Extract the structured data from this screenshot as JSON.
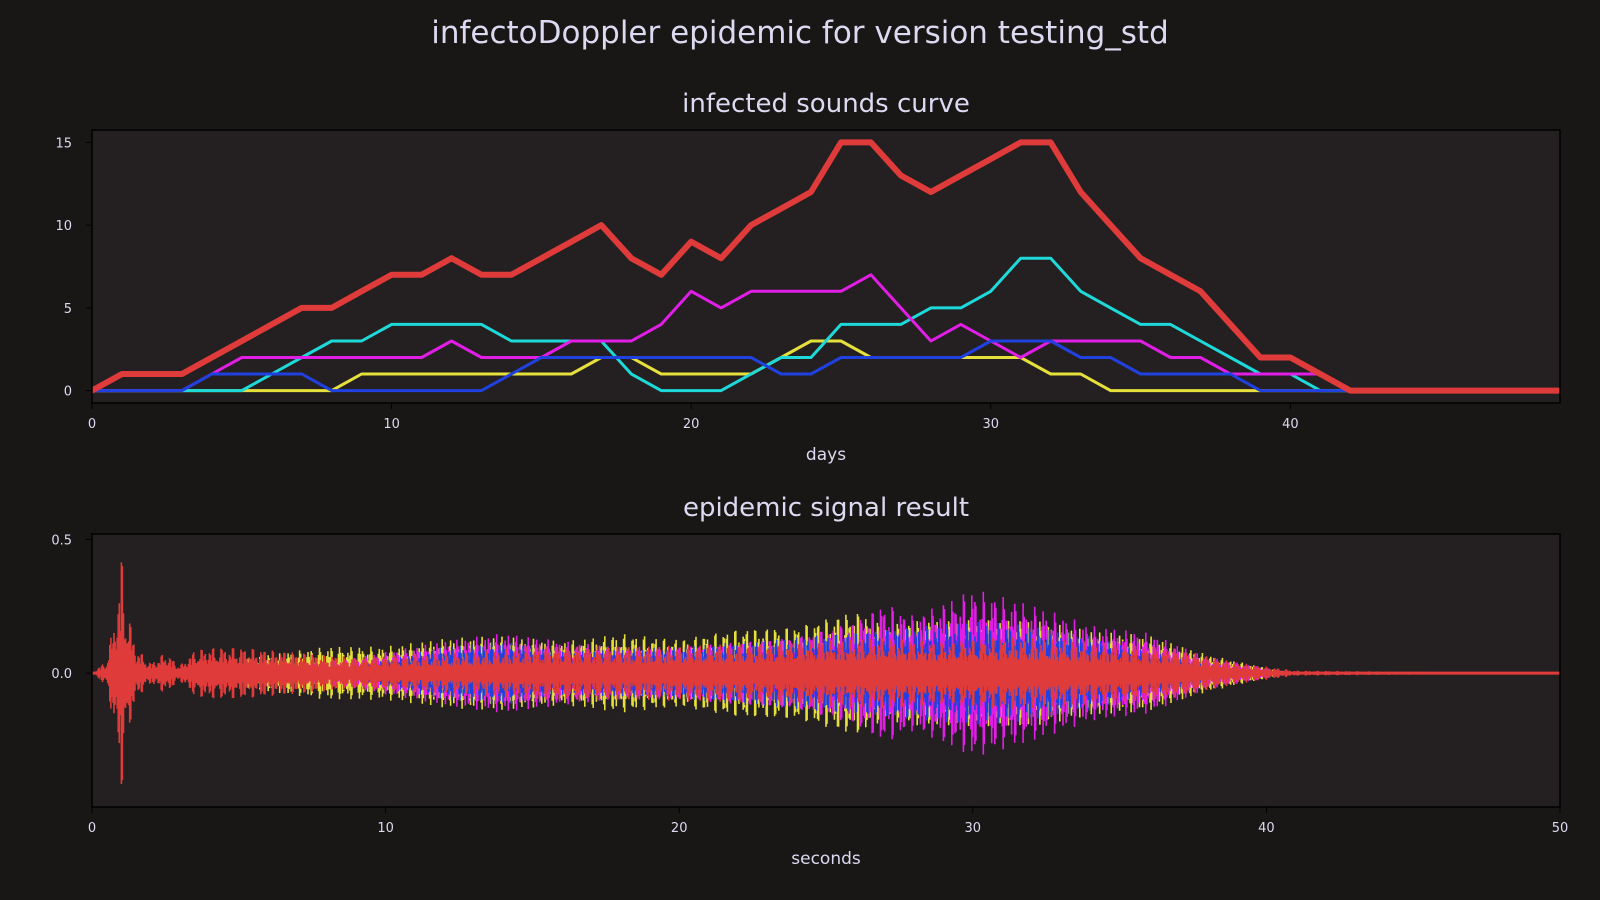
{
  "figure": {
    "suptitle": "infectoDoppler epidemic for version testing_std",
    "background": "#191616",
    "axes_background": "#241f20",
    "text_color": "#dcdaf0"
  },
  "chart_data": [
    {
      "type": "line",
      "title": "infected sounds curve",
      "xlabel": "days",
      "ylabel": "",
      "xlim": [
        0,
        49
      ],
      "ylim": [
        -0.75,
        15.75
      ],
      "xticks": [
        0,
        10,
        20,
        30,
        40
      ],
      "yticks": [
        0,
        5,
        10,
        15
      ],
      "grid": false,
      "legend": false,
      "series": [
        {
          "color": "#e6e03c",
          "width": 3,
          "values": [
            0,
            0,
            0,
            0,
            0,
            0,
            0,
            0,
            0,
            1,
            1,
            1,
            1,
            1,
            1,
            1,
            1,
            2,
            2,
            1,
            1,
            1,
            1,
            2,
            3,
            3,
            2,
            2,
            2,
            2,
            2,
            2,
            1,
            1,
            0,
            0,
            0,
            0,
            0,
            0,
            0,
            0,
            0,
            0,
            0,
            0,
            0,
            0,
            0,
            0
          ]
        },
        {
          "color": "#1ed9d9",
          "width": 3,
          "values": [
            0,
            0,
            0,
            0,
            0,
            0,
            1,
            2,
            3,
            3,
            4,
            4,
            4,
            4,
            3,
            3,
            3,
            3,
            1,
            0,
            0,
            0,
            1,
            2,
            2,
            4,
            4,
            4,
            5,
            5,
            6,
            8,
            8,
            6,
            5,
            4,
            4,
            3,
            2,
            1,
            1,
            0,
            0,
            0,
            0,
            0,
            0,
            0,
            0,
            0
          ]
        },
        {
          "color": "#e01ee6",
          "width": 3,
          "values": [
            0,
            0,
            0,
            0,
            1,
            2,
            2,
            2,
            2,
            2,
            2,
            2,
            3,
            2,
            2,
            2,
            3,
            3,
            3,
            4,
            6,
            5,
            6,
            6,
            6,
            6,
            7,
            5,
            3,
            4,
            3,
            2,
            3,
            3,
            3,
            3,
            2,
            2,
            1,
            1,
            1,
            1,
            0,
            0,
            0,
            0,
            0,
            0,
            0,
            0
          ]
        },
        {
          "color": "#2041e0",
          "width": 3,
          "values": [
            0,
            0,
            0,
            0,
            1,
            1,
            1,
            1,
            0,
            0,
            0,
            0,
            0,
            0,
            1,
            2,
            2,
            2,
            2,
            2,
            2,
            2,
            2,
            1,
            1,
            2,
            2,
            2,
            2,
            2,
            3,
            3,
            3,
            2,
            2,
            1,
            1,
            1,
            1,
            0,
            0,
            0,
            0,
            0,
            0,
            0,
            0,
            0,
            0,
            0
          ]
        },
        {
          "color": "#e03b3b",
          "width": 6,
          "values": [
            0,
            1,
            1,
            1,
            2,
            3,
            4,
            5,
            5,
            6,
            7,
            7,
            8,
            7,
            7,
            8,
            9,
            10,
            8,
            7,
            9,
            8,
            10,
            11,
            12,
            15,
            15,
            13,
            12,
            13,
            14,
            15,
            15,
            12,
            10,
            8,
            7,
            6,
            4,
            2,
            2,
            1,
            0,
            0,
            0,
            0,
            0,
            0,
            0,
            0
          ]
        }
      ]
    },
    {
      "type": "area",
      "title": "epidemic signal result",
      "xlabel": "seconds",
      "ylabel": "",
      "xlim": [
        0,
        50
      ],
      "ylim": [
        -0.5,
        0.52
      ],
      "xticks": [
        0,
        10,
        20,
        30,
        40,
        50
      ],
      "yticks": [
        0.0,
        0.5
      ],
      "ytick_labels": [
        "0.0",
        "0.5"
      ],
      "grid": false,
      "legend": false,
      "series": [
        {
          "color": "#e6e03c",
          "envelope_seconds": [
            0,
            2,
            4,
            5,
            6,
            8,
            10,
            12,
            14,
            16,
            18,
            20,
            22,
            24,
            26,
            27,
            28,
            30,
            32,
            34,
            36,
            38,
            40,
            41,
            50
          ],
          "envelope_amplitude": [
            0,
            0.01,
            0.02,
            0.05,
            0.07,
            0.1,
            0.1,
            0.13,
            0.14,
            0.12,
            0.15,
            0.13,
            0.17,
            0.18,
            0.24,
            0.18,
            0.2,
            0.2,
            0.2,
            0.16,
            0.14,
            0.07,
            0.02,
            0,
            0
          ]
        },
        {
          "color": "#e01ee6",
          "envelope_seconds": [
            0,
            4,
            6,
            8,
            10,
            12,
            14,
            16,
            18,
            20,
            22,
            24,
            26,
            27,
            28,
            30,
            32,
            34,
            36,
            38,
            40,
            41,
            50
          ],
          "envelope_amplitude": [
            0,
            0,
            0.02,
            0.04,
            0.08,
            0.12,
            0.15,
            0.12,
            0.1,
            0.1,
            0.12,
            0.14,
            0.2,
            0.27,
            0.22,
            0.32,
            0.26,
            0.18,
            0.15,
            0.06,
            0.02,
            0,
            0
          ]
        },
        {
          "color": "#2041e0",
          "envelope_seconds": [
            0,
            8,
            10,
            12,
            14,
            16,
            18,
            20,
            22,
            24,
            26,
            28,
            30,
            32,
            34,
            36,
            38,
            40,
            50
          ],
          "envelope_amplitude": [
            0,
            0,
            0.05,
            0.1,
            0.12,
            0.08,
            0.09,
            0.1,
            0.12,
            0.14,
            0.16,
            0.18,
            0.2,
            0.18,
            0.14,
            0.08,
            0.03,
            0,
            0
          ]
        },
        {
          "color": "#e03b3b",
          "envelope_seconds": [
            0,
            0.5,
            0.9,
            1,
            1.1,
            1.5,
            2,
            2.5,
            3,
            3.5,
            4,
            5,
            6,
            7,
            9,
            11,
            13,
            15,
            17,
            19,
            21,
            23,
            25,
            27,
            29,
            31,
            33,
            35,
            37,
            39,
            41,
            50
          ],
          "envelope_amplitude": [
            0,
            0.05,
            0.3,
            0.49,
            0.3,
            0.1,
            0.04,
            0.08,
            0.03,
            0.09,
            0.1,
            0.1,
            0.09,
            0.08,
            0.06,
            0.07,
            0.08,
            0.1,
            0.1,
            0.1,
            0.11,
            0.11,
            0.13,
            0.14,
            0.12,
            0.14,
            0.13,
            0.11,
            0.09,
            0.04,
            0.01,
            0
          ]
        }
      ]
    }
  ]
}
